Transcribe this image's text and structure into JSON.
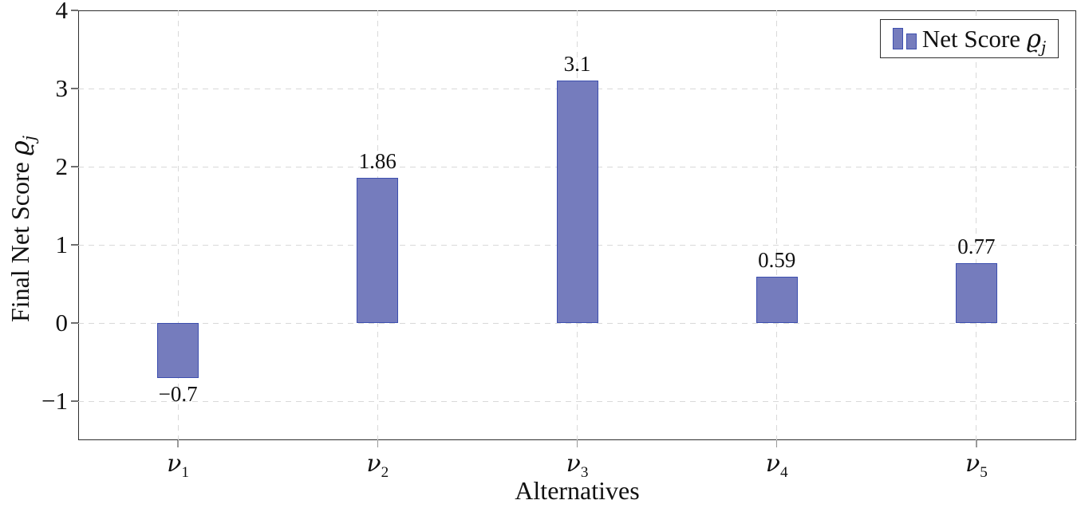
{
  "chart_data": {
    "type": "bar",
    "title": "",
    "xlabel": "Alternatives",
    "ylabel": {
      "prefix": "Final Net Score ",
      "symbol": "ϱ",
      "subscript": "j"
    },
    "legend": {
      "prefix": "Net Score ",
      "symbol": "ϱ",
      "subscript": "j",
      "position": "top-right",
      "border": true
    },
    "categories": [
      {
        "symbol": "ν",
        "subscript": "1"
      },
      {
        "symbol": "ν",
        "subscript": "2"
      },
      {
        "symbol": "ν",
        "subscript": "3"
      },
      {
        "symbol": "ν",
        "subscript": "4"
      },
      {
        "symbol": "ν",
        "subscript": "5"
      }
    ],
    "values": [
      -0.7,
      1.86,
      3.1,
      0.59,
      0.77
    ],
    "bar_labels": [
      "−0.7",
      "1.86",
      "3.1",
      "0.59",
      "0.77"
    ],
    "ylim": [
      -1.5,
      4
    ],
    "yticks": [
      4,
      3,
      2,
      1,
      0,
      -1
    ],
    "ytick_labels": [
      "4",
      "3",
      "2",
      "1",
      "0",
      "−1"
    ],
    "grid": {
      "style": "dashed",
      "horizontal_at": [
        3,
        2,
        1,
        0,
        -1
      ],
      "vertical_at": "category-centers"
    },
    "colors": {
      "bar_fill": "#757cbd",
      "bar_border": "#3d4faf",
      "grid": "#d9d9d9",
      "axis_frame": "#2e2e2e",
      "text": "#111111",
      "background": "#ffffff"
    }
  }
}
